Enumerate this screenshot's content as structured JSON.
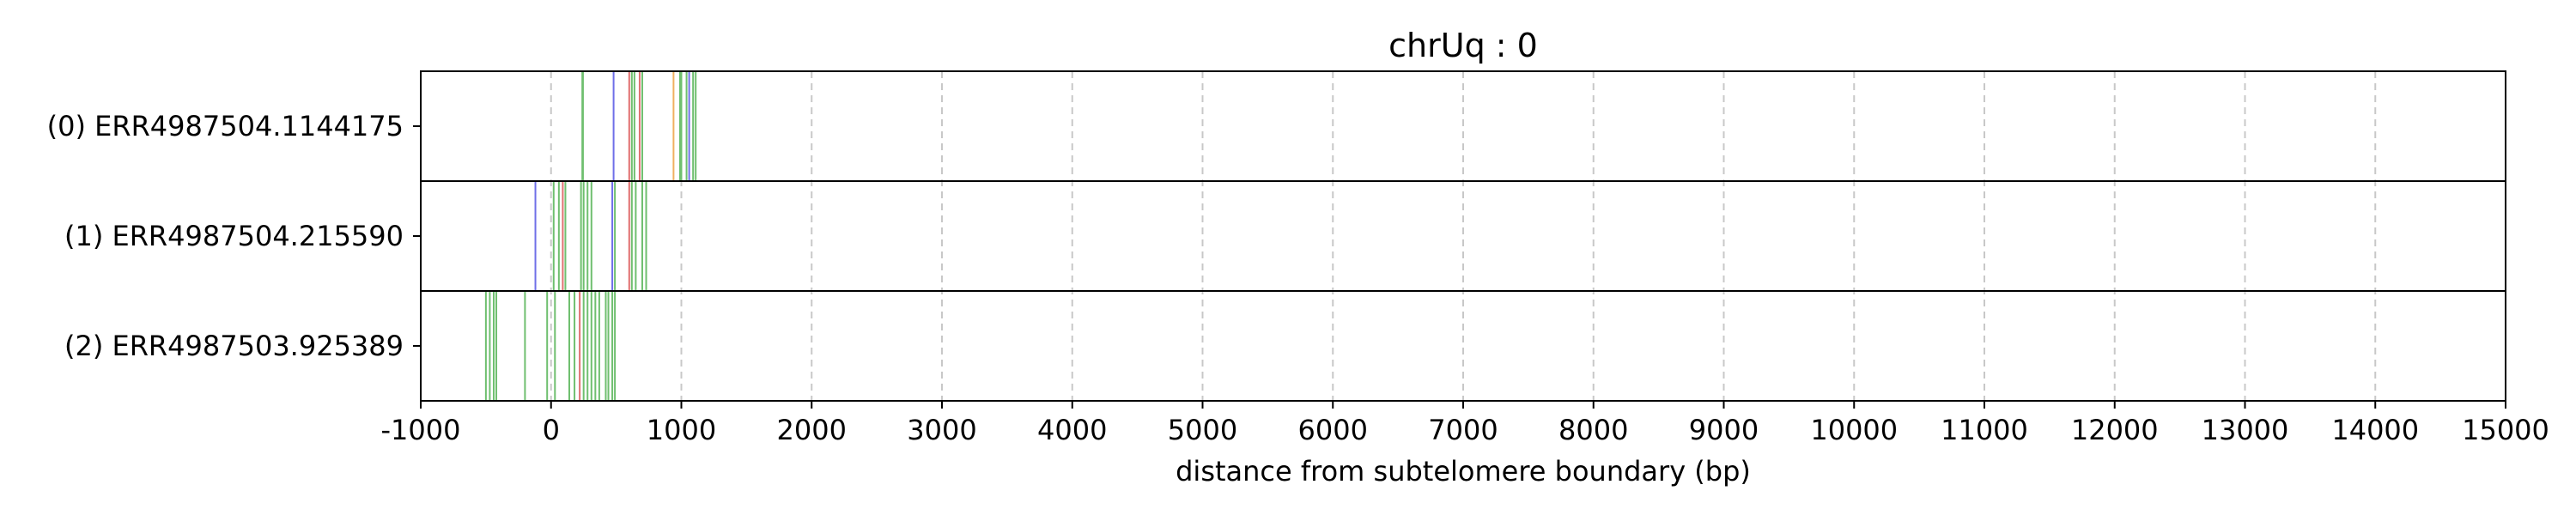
{
  "chart_data": {
    "type": "line-event-tracks",
    "title": "chrUq : 0",
    "xlabel": "distance from subtelomere boundary (bp)",
    "xlim": [
      -1000,
      15000
    ],
    "xticks": [
      -1000,
      0,
      1000,
      2000,
      3000,
      4000,
      5000,
      6000,
      7000,
      8000,
      9000,
      10000,
      11000,
      12000,
      13000,
      14000,
      15000
    ],
    "xtick_labels": [
      "-1000",
      "0",
      "1000",
      "2000",
      "3000",
      "4000",
      "5000",
      "6000",
      "7000",
      "8000",
      "9000",
      "10000",
      "11000",
      "12000",
      "13000",
      "14000",
      "15000"
    ],
    "grid": "x-dashed",
    "colors": {
      "green": "#6fbf6f",
      "blue": "#6f6fe8",
      "red": "#e07070",
      "orange": "#f0b060"
    },
    "rows": [
      {
        "label": "(0) ERR4987504.1144175",
        "events": [
          {
            "x": 240,
            "c": "green"
          },
          {
            "x": 245,
            "c": "green"
          },
          {
            "x": 480,
            "c": "blue"
          },
          {
            "x": 600,
            "c": "red"
          },
          {
            "x": 620,
            "c": "green"
          },
          {
            "x": 640,
            "c": "green"
          },
          {
            "x": 680,
            "c": "red"
          },
          {
            "x": 700,
            "c": "green"
          },
          {
            "x": 940,
            "c": "orange"
          },
          {
            "x": 990,
            "c": "green"
          },
          {
            "x": 1000,
            "c": "green"
          },
          {
            "x": 1040,
            "c": "green"
          },
          {
            "x": 1060,
            "c": "blue"
          },
          {
            "x": 1090,
            "c": "green"
          },
          {
            "x": 1110,
            "c": "green"
          }
        ]
      },
      {
        "label": "(1) ERR4987504.215590",
        "events": [
          {
            "x": -120,
            "c": "blue"
          },
          {
            "x": 20,
            "c": "green"
          },
          {
            "x": 60,
            "c": "green"
          },
          {
            "x": 90,
            "c": "red"
          },
          {
            "x": 110,
            "c": "green"
          },
          {
            "x": 230,
            "c": "green"
          },
          {
            "x": 250,
            "c": "green"
          },
          {
            "x": 280,
            "c": "green"
          },
          {
            "x": 310,
            "c": "green"
          },
          {
            "x": 470,
            "c": "blue"
          },
          {
            "x": 490,
            "c": "green"
          },
          {
            "x": 600,
            "c": "red"
          },
          {
            "x": 620,
            "c": "green"
          },
          {
            "x": 650,
            "c": "green"
          },
          {
            "x": 700,
            "c": "green"
          },
          {
            "x": 730,
            "c": "green"
          }
        ]
      },
      {
        "label": "(2) ERR4987503.925389",
        "events": [
          {
            "x": -500,
            "c": "green"
          },
          {
            "x": -470,
            "c": "green"
          },
          {
            "x": -440,
            "c": "green"
          },
          {
            "x": -420,
            "c": "green"
          },
          {
            "x": -200,
            "c": "green"
          },
          {
            "x": -30,
            "c": "green"
          },
          {
            "x": 30,
            "c": "green"
          },
          {
            "x": 140,
            "c": "green"
          },
          {
            "x": 180,
            "c": "green"
          },
          {
            "x": 220,
            "c": "red"
          },
          {
            "x": 250,
            "c": "green"
          },
          {
            "x": 280,
            "c": "green"
          },
          {
            "x": 310,
            "c": "green"
          },
          {
            "x": 340,
            "c": "green"
          },
          {
            "x": 370,
            "c": "green"
          },
          {
            "x": 420,
            "c": "green"
          },
          {
            "x": 440,
            "c": "green"
          },
          {
            "x": 470,
            "c": "green"
          },
          {
            "x": 490,
            "c": "green"
          }
        ]
      }
    ]
  }
}
